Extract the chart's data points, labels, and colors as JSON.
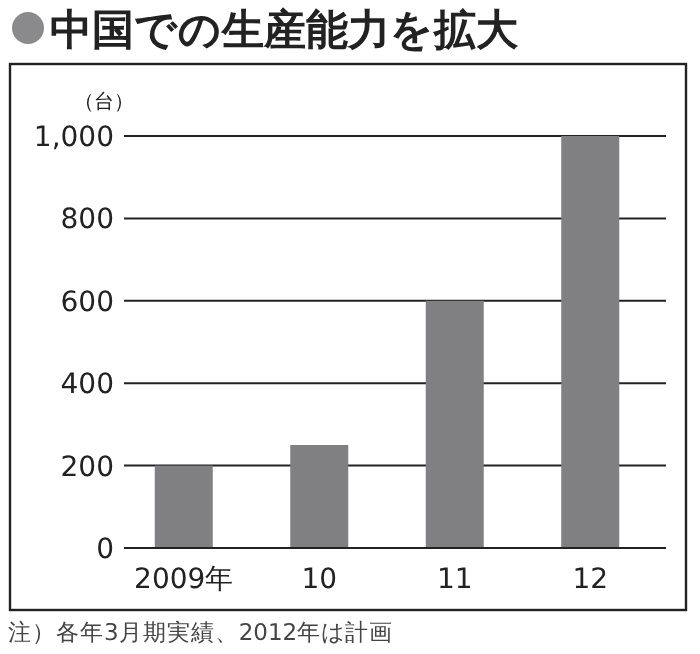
{
  "chart_data": {
    "type": "bar",
    "title": "中国での生産能力を拡大",
    "ylabel": "（台）",
    "categories": [
      "2009年",
      "10",
      "11",
      "12"
    ],
    "values": [
      200,
      250,
      600,
      1000
    ],
    "color": "#808083",
    "ylim": [
      0,
      1000
    ],
    "yticks": [
      0,
      {
        "value": 200,
        "label": "200"
      },
      {
        "value": 400,
        "label": "400"
      },
      {
        "value": 600,
        "label": "600"
      },
      {
        "value": 800,
        "label": "800"
      },
      {
        "value": 1000,
        "label": "1,000"
      }
    ],
    "grid": "y",
    "annotations": [
      "注）各年3月期実績、2012年は計画"
    ]
  }
}
